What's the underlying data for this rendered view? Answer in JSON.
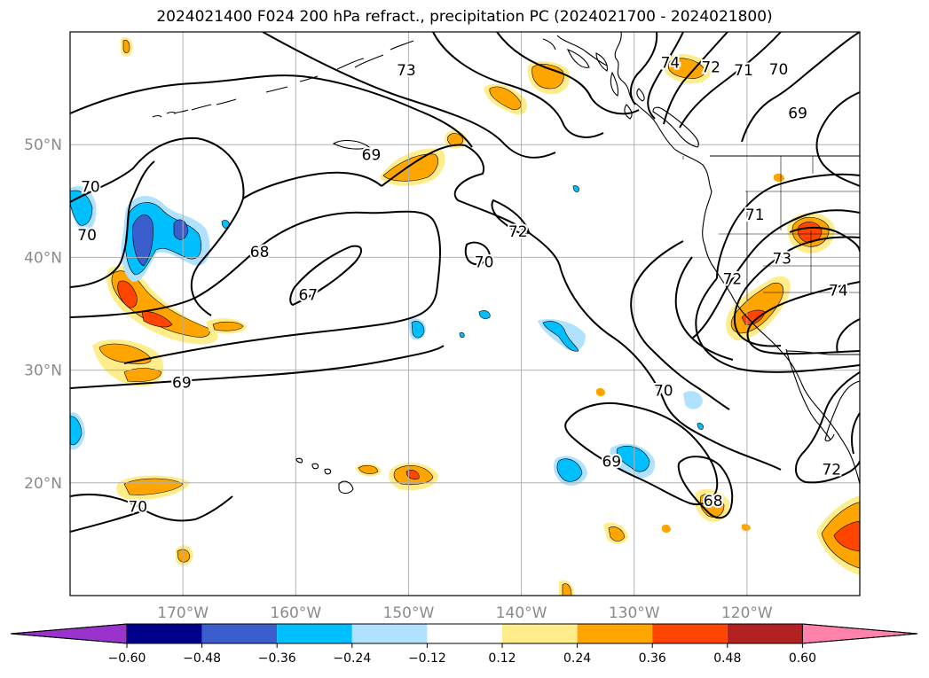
{
  "title": "2024021400 F024 200 hPa refract., precipitation PC (2024021700 - 2024021800)",
  "map": {
    "lon_range": [
      -180,
      -110
    ],
    "lat_range": [
      10,
      60
    ],
    "lon_ticks": [
      {
        "value": -170,
        "label": "170°W"
      },
      {
        "value": -160,
        "label": "160°W"
      },
      {
        "value": -150,
        "label": "150°W"
      },
      {
        "value": -140,
        "label": "140°W"
      },
      {
        "value": -130,
        "label": "130°W"
      },
      {
        "value": -120,
        "label": "120°W"
      }
    ],
    "lat_ticks": [
      {
        "value": 20,
        "label": "20°N"
      },
      {
        "value": 30,
        "label": "30°N"
      },
      {
        "value": 40,
        "label": "40°N"
      },
      {
        "value": 50,
        "label": "50°N"
      }
    ],
    "grid": true,
    "contour_labels": [
      {
        "text": "73",
        "lon": -150.2,
        "lat": 56.6
      },
      {
        "text": "74",
        "lon": -126.8,
        "lat": 57.3
      },
      {
        "text": "72",
        "lon": -123.2,
        "lat": 56.9
      },
      {
        "text": "71",
        "lon": -120.3,
        "lat": 56.6
      },
      {
        "text": "70",
        "lon": -117.2,
        "lat": 56.7
      },
      {
        "text": "69",
        "lon": -115.5,
        "lat": 52.8
      },
      {
        "text": "69",
        "lon": -153.3,
        "lat": 49.1
      },
      {
        "text": "70",
        "lon": -178.2,
        "lat": 46.3
      },
      {
        "text": "70",
        "lon": -178.5,
        "lat": 42.0
      },
      {
        "text": "72",
        "lon": -140.3,
        "lat": 42.3
      },
      {
        "text": "70",
        "lon": -143.3,
        "lat": 39.6
      },
      {
        "text": "68",
        "lon": -163.2,
        "lat": 40.5
      },
      {
        "text": "67",
        "lon": -158.9,
        "lat": 36.7
      },
      {
        "text": "71",
        "lon": -119.3,
        "lat": 43.8
      },
      {
        "text": "73",
        "lon": -116.9,
        "lat": 39.9
      },
      {
        "text": "72",
        "lon": -121.3,
        "lat": 38.1
      },
      {
        "text": "74",
        "lon": -111.9,
        "lat": 37.1
      },
      {
        "text": "69",
        "lon": -170.1,
        "lat": 28.9
      },
      {
        "text": "70",
        "lon": -127.4,
        "lat": 28.2
      },
      {
        "text": "69",
        "lon": -132.0,
        "lat": 21.9
      },
      {
        "text": "68",
        "lon": -123.0,
        "lat": 18.4
      },
      {
        "text": "72",
        "lon": -112.5,
        "lat": 21.2
      },
      {
        "text": "70",
        "lon": -174.0,
        "lat": 17.9
      }
    ]
  },
  "colorbar": {
    "tick_labels": [
      "−0.60",
      "−0.48",
      "−0.36",
      "−0.24",
      "−0.12",
      "0.12",
      "0.24",
      "0.36",
      "0.48",
      "0.60"
    ],
    "colors": [
      "#9933cc",
      "#00008b",
      "#3a5fcd",
      "#00bfff",
      "#b0e2ff",
      "#ffffff",
      "#ffec8b",
      "#ffa500",
      "#ff4500",
      "#b22222",
      "#ff82ab"
    ],
    "extend": "both"
  }
}
